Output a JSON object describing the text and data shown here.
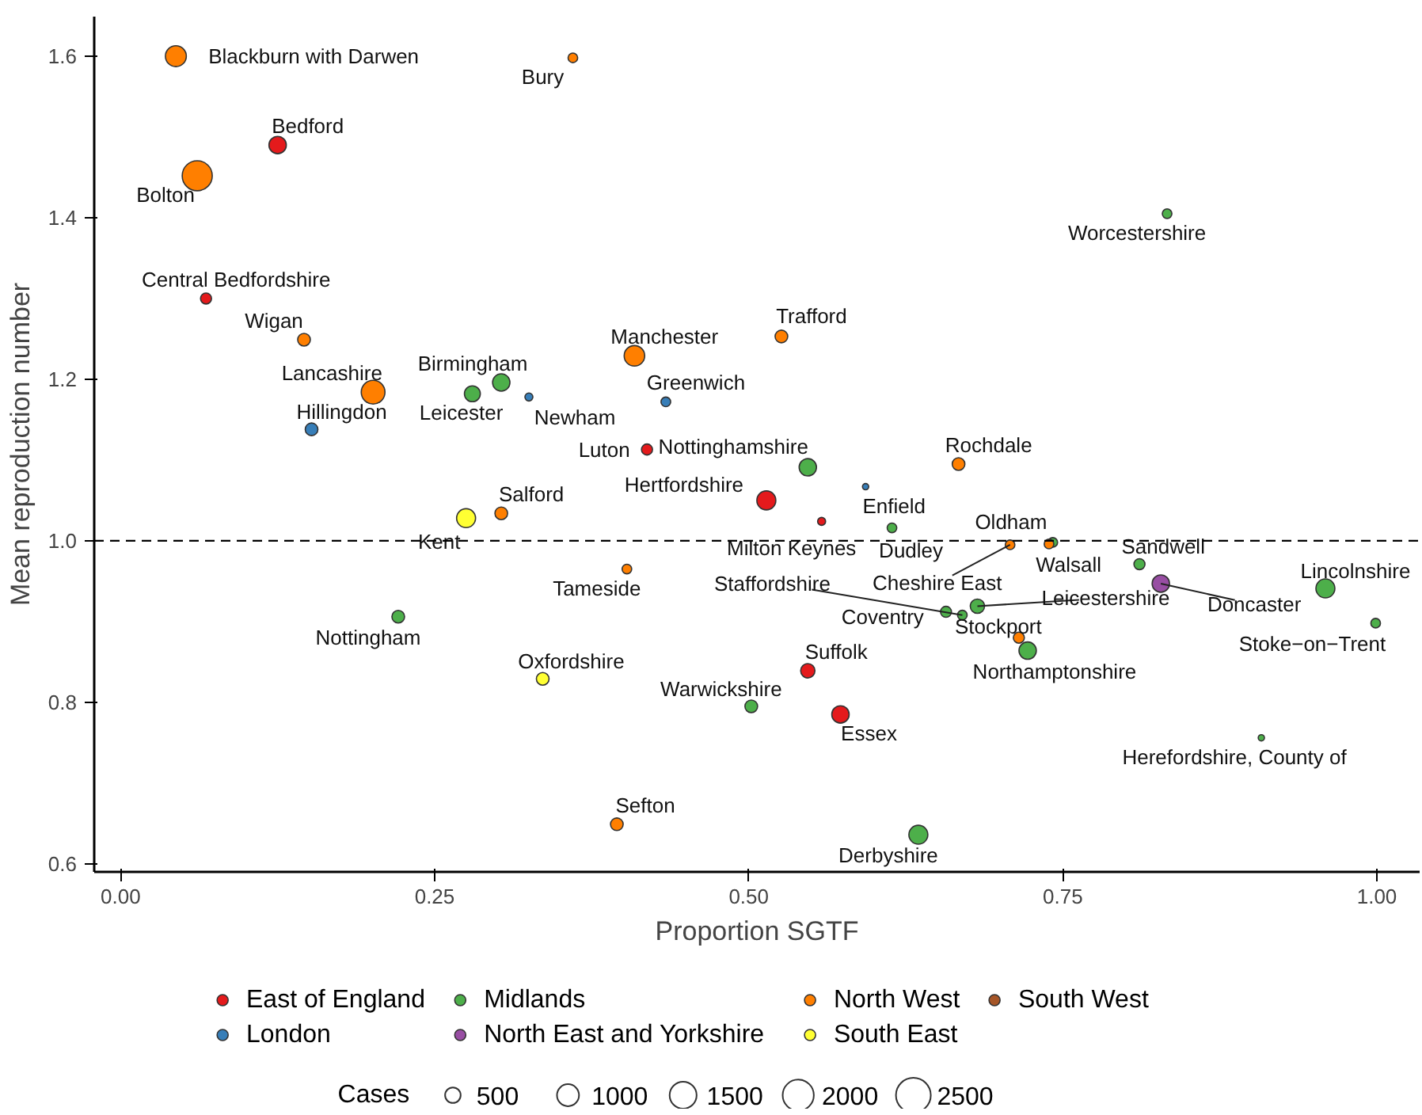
{
  "chart_data": {
    "type": "bubble",
    "xlabel": "Proportion SGTF",
    "ylabel": "Mean reproduction number",
    "xlim": [
      -0.021,
      1.034
    ],
    "ylim": [
      0.59,
      1.649
    ],
    "xticks": [
      {
        "value": 0,
        "label": "0.00"
      },
      0.25,
      {
        "value": 0.5,
        "label": "0.50"
      },
      0.75,
      {
        "value": 1,
        "label": "1.00"
      }
    ],
    "yticks": [
      0.6,
      0.8,
      {
        "value": 1,
        "label": "1.0"
      },
      1.2,
      1.4,
      1.6
    ],
    "grid": false,
    "legend": "bottom",
    "marker": "circle",
    "legend_title": "Cases",
    "size_legend": [
      500,
      1000,
      1500,
      2000,
      2500
    ],
    "ref_lines": [
      {
        "axis": "y",
        "value": 1.0,
        "line_style": "dashed",
        "color": "#000000"
      }
    ],
    "series": [
      {
        "name": "East of England",
        "color": "#e41a1c",
        "x": [
          0.125,
          0.068,
          0.419,
          0.514,
          0.558,
          0.547,
          0.573
        ],
        "values": [
          1.49,
          1.3,
          1.113,
          1.05,
          1.024,
          0.839,
          0.785
        ],
        "sizes": [
          620,
          250,
          250,
          740,
          130,
          420,
          620
        ]
      },
      {
        "name": "London",
        "color": "#377eb8",
        "x": [
          0.152,
          0.325,
          0.434,
          0.593
        ],
        "values": [
          1.138,
          1.178,
          1.172,
          1.067
        ],
        "sizes": [
          330,
          130,
          190,
          80
        ]
      },
      {
        "name": "Midlands",
        "color": "#4daf4a",
        "x": [
          0.28,
          0.303,
          0.833,
          0.547,
          0.614,
          0.742,
          0.811,
          0.959,
          0.999,
          0.657,
          0.682,
          0.67,
          0.722,
          0.502,
          0.908,
          0.635,
          0.221
        ],
        "values": [
          1.182,
          1.196,
          1.405,
          1.091,
          1.016,
          0.998,
          0.971,
          0.941,
          0.898,
          0.912,
          0.919,
          0.908,
          0.864,
          0.795,
          0.756,
          0.636,
          0.906
        ],
        "sizes": [
          520,
          620,
          190,
          620,
          190,
          190,
          250,
          740,
          190,
          250,
          420,
          190,
          620,
          330,
          80,
          740,
          330
        ]
      },
      {
        "name": "North East and Yorkshire",
        "color": "#984ea3",
        "x": [
          0.828
        ],
        "values": [
          0.947
        ],
        "sizes": [
          620
        ]
      },
      {
        "name": "North West",
        "color": "#ff7f00",
        "x": [
          0.044,
          0.36,
          0.061,
          0.146,
          0.201,
          0.409,
          0.303,
          0.526,
          0.667,
          0.739,
          0.708,
          0.715,
          0.403,
          0.395
        ],
        "values": [
          1.6,
          1.598,
          1.452,
          1.249,
          1.184,
          1.229,
          1.034,
          1.253,
          1.095,
          0.996,
          0.995,
          0.88,
          0.965,
          0.649
        ],
        "sizes": [
          900,
          190,
          1860,
          330,
          1160,
          870,
          330,
          330,
          330,
          190,
          190,
          250,
          190,
          330
        ]
      },
      {
        "name": "South East",
        "color": "#ffff33",
        "x": [
          0.275,
          0.336
        ],
        "values": [
          1.028,
          0.829
        ],
        "sizes": [
          740,
          330
        ]
      },
      {
        "name": "South West",
        "color": "#a65628"
      }
    ],
    "annotations": [
      {
        "text": "Blackburn with Darwen",
        "x": 0.044,
        "y": 1.6
      },
      {
        "text": "Bury",
        "x": 0.36,
        "y": 1.598
      },
      {
        "text": "Bedford",
        "x": 0.125,
        "y": 1.49
      },
      {
        "text": "Bolton",
        "x": 0.061,
        "y": 1.452
      },
      {
        "text": "Central Bedfordshire",
        "x": 0.068,
        "y": 1.3
      },
      {
        "text": "Wigan",
        "x": 0.146,
        "y": 1.249
      },
      {
        "text": "Lancashire",
        "x": 0.201,
        "y": 1.184
      },
      {
        "text": "Hillingdon",
        "x": 0.152,
        "y": 1.138
      },
      {
        "text": "Birmingham",
        "x": 0.303,
        "y": 1.196
      },
      {
        "text": "Leicester",
        "x": 0.28,
        "y": 1.182
      },
      {
        "text": "Newham",
        "x": 0.325,
        "y": 1.178
      },
      {
        "text": "Manchester",
        "x": 0.409,
        "y": 1.229
      },
      {
        "text": "Greenwich",
        "x": 0.434,
        "y": 1.172
      },
      {
        "text": "Luton",
        "x": 0.419,
        "y": 1.113
      },
      {
        "text": "Nottinghamshire",
        "x": 0.547,
        "y": 1.091
      },
      {
        "text": "Hertfordshire",
        "x": 0.514,
        "y": 1.05
      },
      {
        "text": "Salford",
        "x": 0.303,
        "y": 1.034
      },
      {
        "text": "Kent",
        "x": 0.275,
        "y": 1.028
      },
      {
        "text": "Trafford",
        "x": 0.526,
        "y": 1.253
      },
      {
        "text": "Worcestershire",
        "x": 0.833,
        "y": 1.405
      },
      {
        "text": "Rochdale",
        "x": 0.667,
        "y": 1.095
      },
      {
        "text": "Enfield",
        "x": 0.593,
        "y": 1.067
      },
      {
        "text": "Oldham",
        "x": 0.739,
        "y": 0.996
      },
      {
        "text": "Milton Keynes",
        "x": 0.558,
        "y": 1.024
      },
      {
        "text": "Dudley",
        "x": 0.614,
        "y": 1.016
      },
      {
        "text": "Walsall",
        "x": 0.742,
        "y": 0.998
      },
      {
        "text": "Sandwell",
        "x": 0.811,
        "y": 0.971
      },
      {
        "text": "Staffordshire",
        "x": 0.67,
        "y": 0.908
      },
      {
        "text": "Cheshire East",
        "x": 0.708,
        "y": 0.995
      },
      {
        "text": "Lincolnshire",
        "x": 0.959,
        "y": 0.941
      },
      {
        "text": "Leicestershire",
        "x": 0.682,
        "y": 0.919
      },
      {
        "text": "Doncaster",
        "x": 0.828,
        "y": 0.947
      },
      {
        "text": "Coventry",
        "x": 0.657,
        "y": 0.912
      },
      {
        "text": "Stockport",
        "x": 0.715,
        "y": 0.88
      },
      {
        "text": "Stoke−on−Trent",
        "x": 0.999,
        "y": 0.898
      },
      {
        "text": "Northamptonshire",
        "x": 0.722,
        "y": 0.864
      },
      {
        "text": "Suffolk",
        "x": 0.547,
        "y": 0.839
      },
      {
        "text": "Warwickshire",
        "x": 0.502,
        "y": 0.795
      },
      {
        "text": "Essex",
        "x": 0.573,
        "y": 0.785
      },
      {
        "text": "Herefordshire, County of",
        "x": 0.908,
        "y": 0.756
      },
      {
        "text": "Derbyshire",
        "x": 0.635,
        "y": 0.636
      },
      {
        "text": "Tameside",
        "x": 0.403,
        "y": 0.965
      },
      {
        "text": "Nottingham",
        "x": 0.221,
        "y": 0.906
      },
      {
        "text": "Oxfordshire",
        "x": 0.336,
        "y": 0.829
      },
      {
        "text": "Sefton",
        "x": 0.395,
        "y": 0.649
      }
    ]
  }
}
